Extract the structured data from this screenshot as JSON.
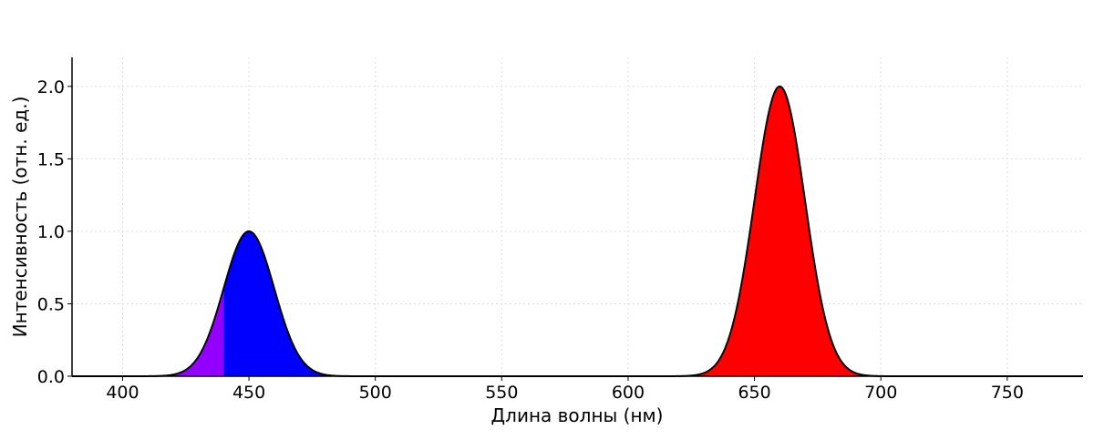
{
  "chart_data": {
    "type": "area",
    "title": "",
    "xlabel": "Длина волны (нм)",
    "ylabel": "Интенсивность (отн. ед.)",
    "xlim": [
      380,
      780
    ],
    "ylim": [
      0,
      2.2
    ],
    "xticks": [
      400,
      450,
      500,
      550,
      600,
      650,
      700,
      750
    ],
    "yticks": [
      0.0,
      0.5,
      1.0,
      1.5,
      2.0
    ],
    "grid": true,
    "legend": "none",
    "series": [
      {
        "peak_nm": 450,
        "amplitude": 1.0,
        "sigma_nm": 10
      },
      {
        "peak_nm": 660,
        "amplitude": 2.0,
        "sigma_nm": 10
      }
    ],
    "fill_bands": [
      {
        "from": 380,
        "to": 440,
        "color": "#9400FF"
      },
      {
        "from": 440,
        "to": 500,
        "color": "#0000FF"
      },
      {
        "from": 620,
        "to": 750,
        "color": "#FF0000"
      }
    ],
    "line_color": "#000000"
  }
}
